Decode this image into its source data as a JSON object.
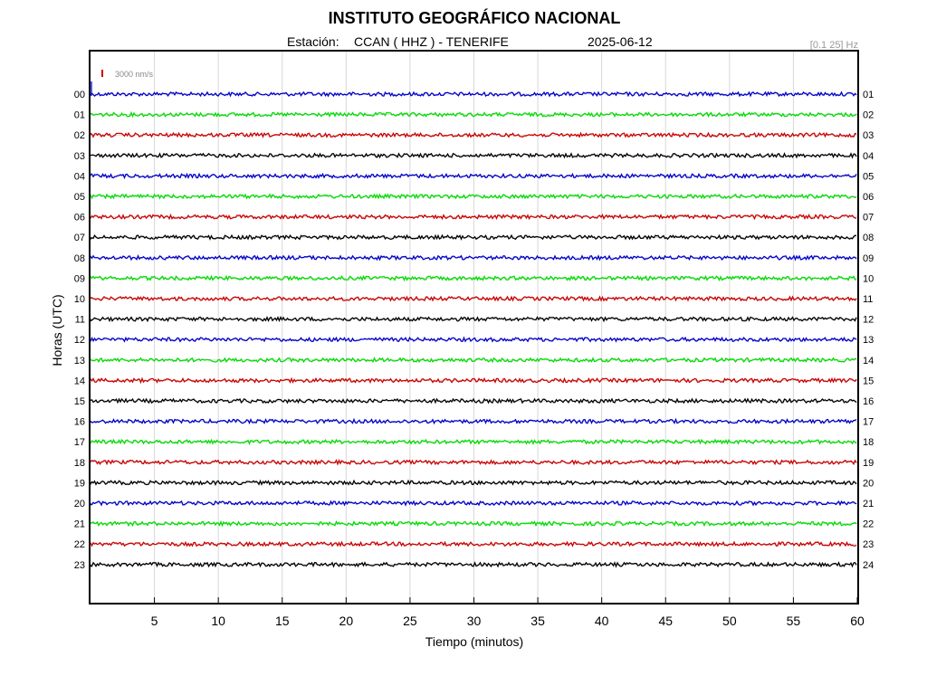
{
  "header": {
    "title": "INSTITUTO GEOGRÁFICO NACIONAL",
    "station_prefix": "Estación:",
    "station": "CCAN ( HHZ ) - TENERIFE",
    "date": "2025-06-12",
    "filter": "[0.1 25] Hz"
  },
  "scale": {
    "label": "3000 nm/s",
    "color": "#cc0000"
  },
  "colors": {
    "blue": "#0000cc",
    "green": "#00dd00",
    "red": "#cc0000",
    "black": "#000000",
    "grid": "#d8d8d8"
  },
  "chart_data": {
    "type": "line",
    "title": "INSTITUTO GEOGRÁFICO NACIONAL",
    "xlabel": "Tiempo (minutos)",
    "ylabel": "Horas (UTC)",
    "xlim": [
      0,
      60
    ],
    "x_ticks": [
      "5",
      "10",
      "15",
      "20",
      "25",
      "30",
      "35",
      "40",
      "45",
      "50",
      "55",
      "60"
    ],
    "grid": true,
    "series": [
      {
        "left_label": "00",
        "right_label": "01",
        "color": "#0000cc",
        "amplitude": 1.0
      },
      {
        "left_label": "01",
        "right_label": "02",
        "color": "#00dd00",
        "amplitude": 1.0
      },
      {
        "left_label": "02",
        "right_label": "03",
        "color": "#cc0000",
        "amplitude": 1.0
      },
      {
        "left_label": "03",
        "right_label": "04",
        "color": "#000000",
        "amplitude": 1.0
      },
      {
        "left_label": "04",
        "right_label": "05",
        "color": "#0000cc",
        "amplitude": 1.0
      },
      {
        "left_label": "05",
        "right_label": "06",
        "color": "#00dd00",
        "amplitude": 1.0
      },
      {
        "left_label": "06",
        "right_label": "07",
        "color": "#cc0000",
        "amplitude": 1.0
      },
      {
        "left_label": "07",
        "right_label": "08",
        "color": "#000000",
        "amplitude": 1.0
      },
      {
        "left_label": "08",
        "right_label": "09",
        "color": "#0000cc",
        "amplitude": 1.0
      },
      {
        "left_label": "09",
        "right_label": "10",
        "color": "#00dd00",
        "amplitude": 1.0
      },
      {
        "left_label": "10",
        "right_label": "11",
        "color": "#cc0000",
        "amplitude": 1.0
      },
      {
        "left_label": "11",
        "right_label": "12",
        "color": "#000000",
        "amplitude": 1.0
      },
      {
        "left_label": "12",
        "right_label": "13",
        "color": "#0000cc",
        "amplitude": 1.0
      },
      {
        "left_label": "13",
        "right_label": "14",
        "color": "#00dd00",
        "amplitude": 1.0
      },
      {
        "left_label": "14",
        "right_label": "15",
        "color": "#cc0000",
        "amplitude": 1.0
      },
      {
        "left_label": "15",
        "right_label": "16",
        "color": "#000000",
        "amplitude": 1.0
      },
      {
        "left_label": "16",
        "right_label": "17",
        "color": "#0000cc",
        "amplitude": 1.0
      },
      {
        "left_label": "17",
        "right_label": "18",
        "color": "#00dd00",
        "amplitude": 1.0
      },
      {
        "left_label": "18",
        "right_label": "19",
        "color": "#cc0000",
        "amplitude": 1.0
      },
      {
        "left_label": "19",
        "right_label": "20",
        "color": "#000000",
        "amplitude": 1.0
      },
      {
        "left_label": "20",
        "right_label": "21",
        "color": "#0000cc",
        "amplitude": 1.0
      },
      {
        "left_label": "21",
        "right_label": "22",
        "color": "#00dd00",
        "amplitude": 1.0
      },
      {
        "left_label": "22",
        "right_label": "23",
        "color": "#cc0000",
        "amplitude": 1.0
      },
      {
        "left_label": "23",
        "right_label": "24",
        "color": "#000000",
        "amplitude": 1.0
      }
    ]
  }
}
